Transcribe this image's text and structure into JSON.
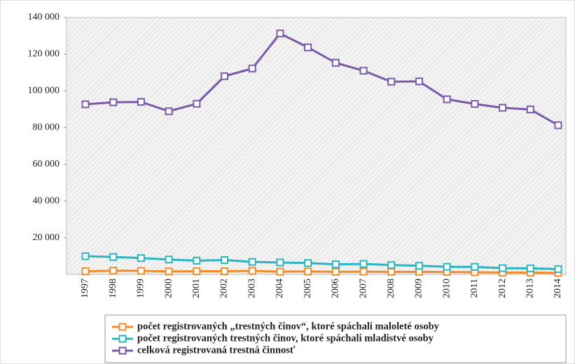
{
  "chart_data": {
    "type": "line",
    "categories": [
      "1997",
      "1998",
      "1999",
      "2000",
      "2001",
      "2002",
      "2003",
      "2004",
      "2005",
      "2006",
      "2007",
      "2008",
      "2009",
      "2010",
      "2011",
      "2012",
      "2013",
      "2014"
    ],
    "series": [
      {
        "name": "počet registrovaných „trestných činov“, ktoré spáchali maloleté osoby",
        "color": "#f08c2a",
        "values": [
          1700,
          2000,
          1900,
          1600,
          1700,
          1700,
          1900,
          1500,
          1600,
          1400,
          1500,
          1400,
          1400,
          1300,
          1200,
          1000,
          1000,
          800
        ]
      },
      {
        "name": "počet registrovaných trestných činov, ktoré spáchali mladistvé osoby",
        "color": "#2cb5c0",
        "values": [
          9900,
          9500,
          8900,
          8100,
          7500,
          7800,
          6800,
          6500,
          6200,
          5500,
          5700,
          5100,
          4700,
          4100,
          4100,
          3400,
          3300,
          2900
        ]
      },
      {
        "name": "celková registrovaná trestná činnosť",
        "color": "#7a5aa8",
        "values": [
          92700,
          93800,
          94000,
          88900,
          93000,
          108000,
          112200,
          131300,
          123700,
          115300,
          111000,
          105000,
          105200,
          95400,
          92900,
          90800,
          89900,
          81300
        ]
      }
    ],
    "ylim": [
      0,
      140000
    ],
    "yticks": [
      {
        "value": 20000,
        "label": "20 000"
      },
      {
        "value": 40000,
        "label": "40 000"
      },
      {
        "value": 60000,
        "label": "60 000"
      },
      {
        "value": 80000,
        "label": "80 000"
      },
      {
        "value": 100000,
        "label": "100 000"
      },
      {
        "value": 120000,
        "label": "120 000"
      },
      {
        "value": 140000,
        "label": "140 000"
      }
    ],
    "legend": "bottom"
  }
}
